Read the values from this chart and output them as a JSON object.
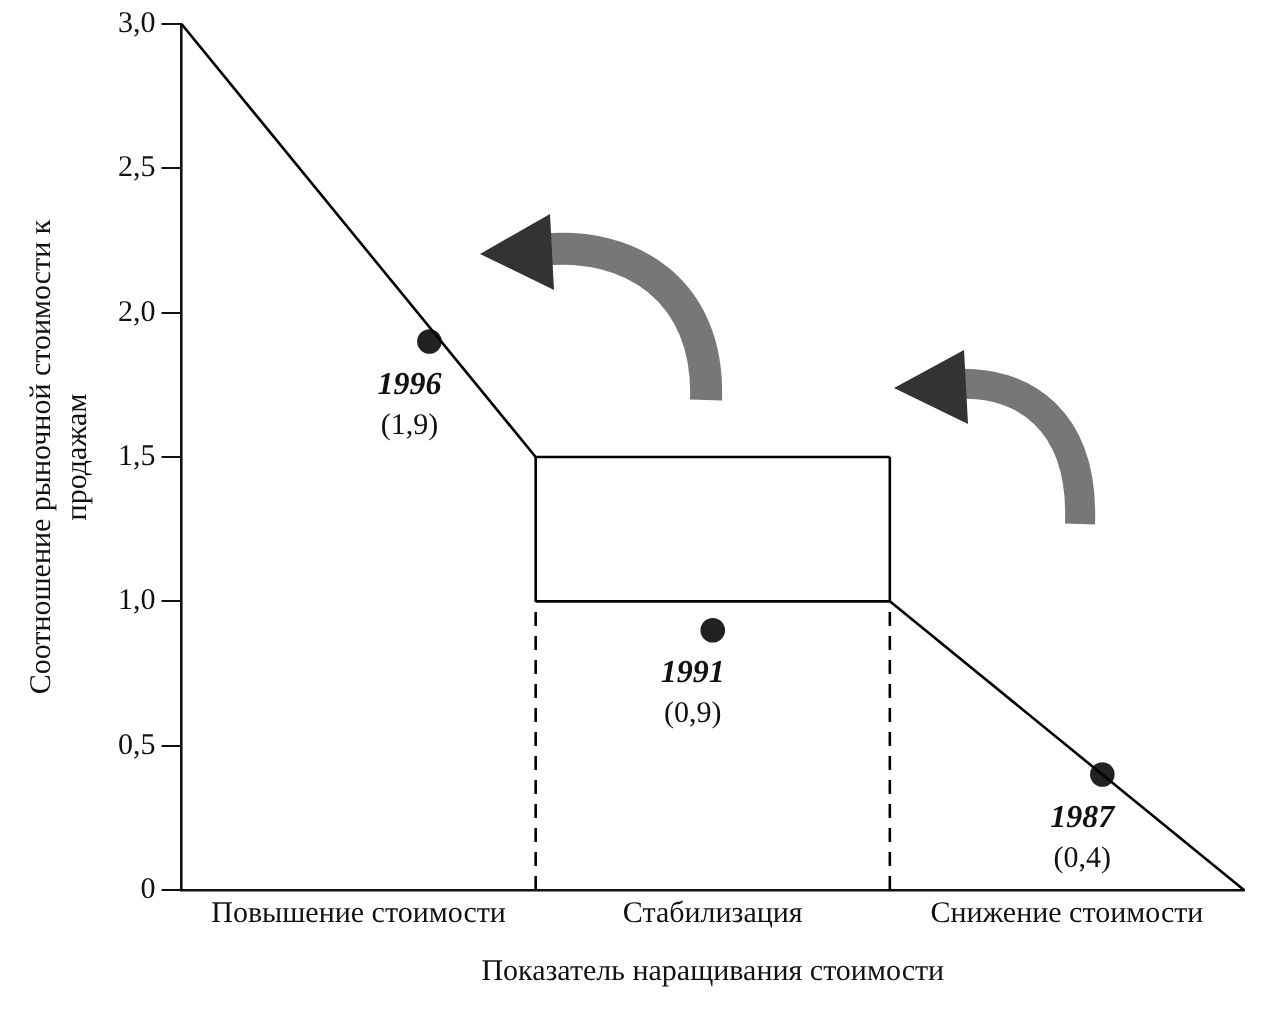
{
  "chart_data": {
    "type": "line",
    "xlabel": "Показатель наращивания стоимости",
    "ylabel": "Соотношение рыночной стоимости к продажам",
    "categories": [
      null,
      null,
      null,
      null,
      null,
      "Повышение стоимости",
      null,
      null,
      null,
      null,
      null,
      null,
      null,
      null,
      null,
      "Стабилизация",
      null,
      null,
      null,
      null,
      null,
      null,
      null,
      null,
      null,
      "Снижение стоимости",
      null,
      null,
      null,
      null,
      null
    ],
    "ylim": [
      0,
      3
    ],
    "yticks": [
      0,
      {
        "value": 0.5,
        "label": "0,5"
      },
      {
        "value": 1,
        "label": "1,0"
      },
      {
        "value": 1.5,
        "label": "1,5"
      },
      {
        "value": 2,
        "label": "2,0"
      },
      {
        "value": 2.5,
        "label": "2,5"
      },
      {
        "value": 3,
        "label": "3,0"
      }
    ],
    "grid": false,
    "legend": false,
    "series": [
      {
        "color": "#000000",
        "marker": "none",
        "line_style": "solid",
        "values": [
          3,
          null,
          null,
          null,
          null,
          null,
          null,
          null,
          null,
          null,
          1.5,
          null,
          null,
          null,
          null,
          null,
          null,
          null,
          null,
          null,
          1.5,
          null,
          null,
          null,
          null,
          null,
          null,
          null,
          null,
          null,
          null
        ],
        "errors": [
          null,
          null,
          null,
          null,
          null,
          null,
          null,
          null,
          null,
          null,
          [
            1,
            1.5
          ],
          null,
          null,
          null,
          null,
          null,
          null,
          null,
          null,
          null,
          [
            1,
            1.5
          ],
          null,
          null,
          null,
          null,
          null,
          null,
          null,
          null,
          null,
          null
        ]
      },
      {
        "color": "#000000",
        "marker": "none",
        "line_style": "solid",
        "values": [
          null,
          null,
          null,
          null,
          null,
          null,
          null,
          null,
          null,
          null,
          1,
          null,
          null,
          null,
          null,
          null,
          null,
          null,
          null,
          null,
          1,
          null,
          null,
          null,
          null,
          null,
          null,
          null,
          null,
          null,
          0
        ],
        "errors": [
          null,
          null,
          null,
          null,
          null,
          null,
          null,
          null,
          null,
          null,
          [
            0,
            1
          ],
          null,
          null,
          null,
          null,
          null,
          null,
          null,
          null,
          null,
          [
            0,
            1
          ],
          null,
          null,
          null,
          null,
          null,
          null,
          null,
          null,
          null,
          null
        ]
      },
      {
        "type": "scatter",
        "name": "1996",
        "color": "#222222",
        "marker": "circle",
        "values": [
          null,
          null,
          null,
          null,
          null,
          null,
          null,
          1.9,
          null,
          null,
          null,
          null,
          null,
          null,
          null,
          null,
          null,
          null,
          null,
          null,
          null,
          null,
          null,
          null,
          null,
          null,
          null,
          null,
          null,
          null,
          null
        ],
        "value_labels": [
          null,
          null,
          null,
          null,
          null,
          null,
          null,
          "(1,9)",
          null,
          null,
          null,
          null,
          null,
          null,
          null,
          null,
          null,
          null,
          null,
          null,
          null,
          null,
          null,
          null,
          null,
          null,
          null,
          null,
          null,
          null,
          null
        ]
      },
      {
        "type": "scatter",
        "name": "1991",
        "color": "#222222",
        "marker": "circle",
        "values": [
          null,
          null,
          null,
          null,
          null,
          null,
          null,
          null,
          null,
          null,
          null,
          null,
          null,
          null,
          null,
          0.9,
          null,
          null,
          null,
          null,
          null,
          null,
          null,
          null,
          null,
          null,
          null,
          null,
          null,
          null,
          null
        ],
        "value_labels": [
          null,
          null,
          null,
          null,
          null,
          null,
          null,
          null,
          null,
          null,
          null,
          null,
          null,
          null,
          null,
          "(0,9)",
          null,
          null,
          null,
          null,
          null,
          null,
          null,
          null,
          null,
          null,
          null,
          null,
          null,
          null,
          null
        ]
      },
      {
        "type": "scatter",
        "name": "1987",
        "color": "#222222",
        "marker": "circle",
        "values": [
          null,
          null,
          null,
          null,
          null,
          null,
          null,
          null,
          null,
          null,
          null,
          null,
          null,
          null,
          null,
          null,
          null,
          null,
          null,
          null,
          null,
          null,
          null,
          null,
          null,
          null,
          0.4,
          null,
          null,
          null,
          null
        ],
        "value_labels": [
          null,
          null,
          null,
          null,
          null,
          null,
          null,
          null,
          null,
          null,
          null,
          null,
          null,
          null,
          null,
          null,
          null,
          null,
          null,
          null,
          null,
          null,
          null,
          null,
          null,
          null,
          "(0,4)",
          null,
          null,
          null,
          null
        ]
      }
    ]
  }
}
